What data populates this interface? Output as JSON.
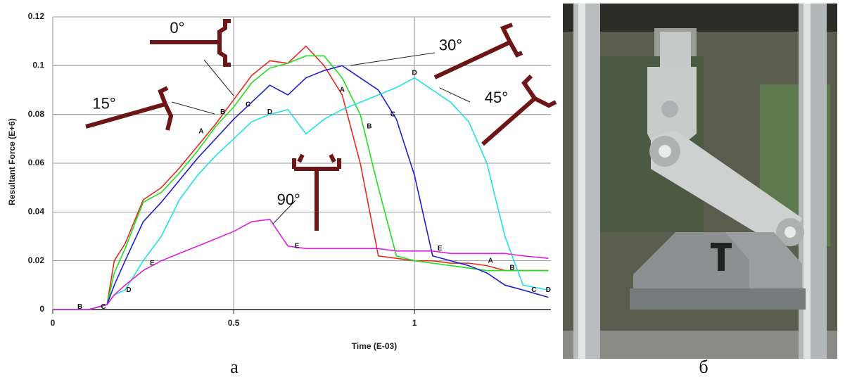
{
  "chart_data": {
    "type": "line",
    "xlabel": "Time (E-03)",
    "ylabel": "Resultant Force (E+6)",
    "x": [
      0,
      0.1,
      0.15,
      0.17,
      0.2,
      0.25,
      0.3,
      0.35,
      0.4,
      0.45,
      0.5,
      0.55,
      0.6,
      0.65,
      0.7,
      0.75,
      0.8,
      0.85,
      0.9,
      0.95,
      1.0,
      1.05,
      1.1,
      1.15,
      1.2,
      1.25,
      1.3,
      1.37
    ],
    "xlim": [
      0,
      1.377
    ],
    "xticks": [
      0,
      0.5,
      1
    ],
    "ylim": [
      0,
      0.12
    ],
    "yticks": [
      0,
      0.02,
      0.04,
      0.06,
      0.08,
      0.1,
      0.12
    ],
    "grid": true,
    "series": [
      {
        "color": "#e62a1e",
        "values": [
          0,
          0,
          0.002,
          0.02,
          0.027,
          0.045,
          0.05,
          0.058,
          0.067,
          0.076,
          0.086,
          0.096,
          0.102,
          0.101,
          0.108,
          0.1,
          0.088,
          0.06,
          0.022,
          0.021,
          0.02,
          0.02,
          0.019,
          0.019,
          0.018,
          0.016,
          0.016,
          0.016
        ]
      },
      {
        "color": "#1ee01e",
        "values": [
          0,
          0,
          0.002,
          0.015,
          0.025,
          0.044,
          0.048,
          0.056,
          0.065,
          0.075,
          0.083,
          0.093,
          0.099,
          0.101,
          0.104,
          0.104,
          0.095,
          0.08,
          0.05,
          0.022,
          0.02,
          0.019,
          0.018,
          0.017,
          0.016,
          0.016,
          0.016,
          0.016
        ]
      },
      {
        "color": "#1e1ed2",
        "values": [
          0,
          0,
          0.002,
          0.01,
          0.02,
          0.036,
          0.044,
          0.053,
          0.062,
          0.07,
          0.078,
          0.085,
          0.092,
          0.088,
          0.095,
          0.098,
          0.1,
          0.095,
          0.09,
          0.078,
          0.055,
          0.022,
          0.02,
          0.018,
          0.015,
          0.01,
          0.008,
          0.005
        ]
      },
      {
        "color": "#1ee0ea",
        "values": [
          0,
          0,
          0.002,
          0.006,
          0.008,
          0.02,
          0.03,
          0.045,
          0.055,
          0.063,
          0.07,
          0.077,
          0.08,
          0.082,
          0.072,
          0.078,
          0.082,
          0.085,
          0.088,
          0.091,
          0.095,
          0.09,
          0.085,
          0.077,
          0.06,
          0.03,
          0.01,
          0.008
        ]
      },
      {
        "color": "#e01ee0",
        "values": [
          0,
          0,
          0.002,
          0.006,
          0.01,
          0.016,
          0.02,
          0.023,
          0.026,
          0.029,
          0.032,
          0.036,
          0.037,
          0.026,
          0.025,
          0.025,
          0.025,
          0.025,
          0.025,
          0.024,
          0.024,
          0.024,
          0.023,
          0.023,
          0.023,
          0.023,
          0.022,
          0.021
        ]
      }
    ],
    "annotations": [
      {
        "text": "0°",
        "x": 0.344,
        "y": 0.115,
        "style": "angle"
      },
      {
        "text": "15°",
        "x": 0.142,
        "y": 0.084,
        "style": "angle"
      },
      {
        "text": "30°",
        "x": 1.1,
        "y": 0.108,
        "style": "angle"
      },
      {
        "text": "45°",
        "x": 1.226,
        "y": 0.0865,
        "style": "angle"
      },
      {
        "text": "90°",
        "x": 0.652,
        "y": 0.0447,
        "style": "angle"
      },
      {
        "text": "A",
        "x": 0.41,
        "y": 0.073,
        "style": "letter"
      },
      {
        "text": "B",
        "x": 0.47,
        "y": 0.081,
        "style": "letter"
      },
      {
        "text": "C",
        "x": 0.54,
        "y": 0.084,
        "style": "letter"
      },
      {
        "text": "D",
        "x": 0.6,
        "y": 0.081,
        "style": "letter"
      },
      {
        "text": "A",
        "x": 0.8,
        "y": 0.09,
        "style": "letter"
      },
      {
        "text": "B",
        "x": 0.875,
        "y": 0.075,
        "style": "letter"
      },
      {
        "text": "C",
        "x": 0.94,
        "y": 0.08,
        "style": "letter"
      },
      {
        "text": "D",
        "x": 1.0,
        "y": 0.097,
        "style": "letter"
      },
      {
        "text": "E",
        "x": 0.275,
        "y": 0.019,
        "style": "letter"
      },
      {
        "text": "E",
        "x": 0.675,
        "y": 0.026,
        "style": "letter"
      },
      {
        "text": "E",
        "x": 1.07,
        "y": 0.025,
        "style": "letter"
      },
      {
        "text": "A",
        "x": 1.21,
        "y": 0.02,
        "style": "letter"
      },
      {
        "text": "B",
        "x": 1.27,
        "y": 0.017,
        "style": "letter"
      },
      {
        "text": "C",
        "x": 1.33,
        "y": 0.008,
        "style": "letter"
      },
      {
        "text": "D",
        "x": 1.37,
        "y": 0.008,
        "style": "letter"
      },
      {
        "text": "B",
        "x": 0.075,
        "y": 0.001,
        "style": "letter"
      },
      {
        "text": "C",
        "x": 0.14,
        "y": 0.001,
        "style": "letter"
      },
      {
        "text": "D",
        "x": 0.21,
        "y": 0.008,
        "style": "letter"
      }
    ]
  },
  "panel_labels": [
    "а",
    "б"
  ]
}
